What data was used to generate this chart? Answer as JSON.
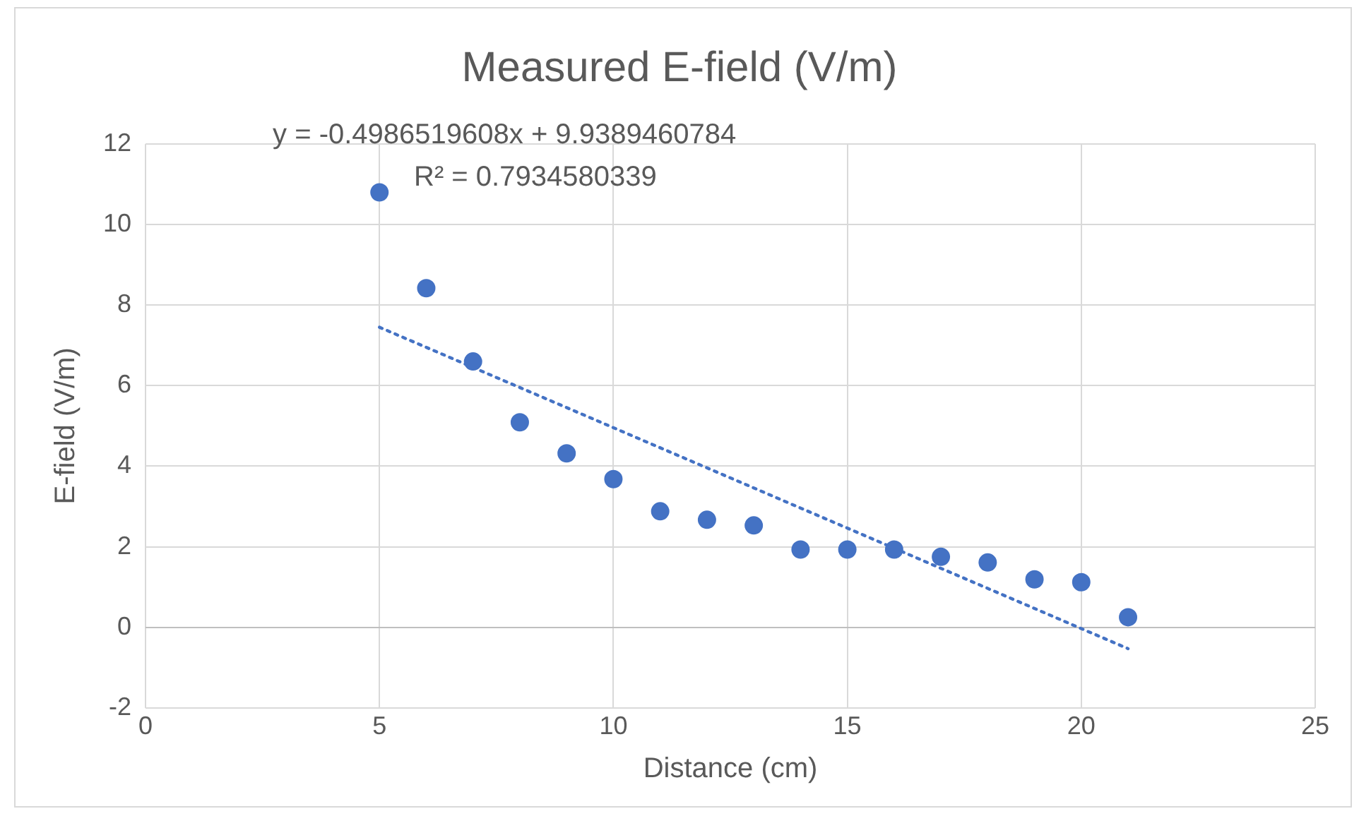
{
  "chart_data": {
    "type": "scatter",
    "title": "Measured E-field (V/m)",
    "xlabel": "Distance (cm)",
    "ylabel": "E-field (V/m)",
    "annotations": [
      "y = -0.4986519608x + 9.9389460784",
      "R² = 0.7934580339"
    ],
    "x": [
      5,
      6,
      7,
      8,
      9,
      10,
      11,
      12,
      13,
      14,
      15,
      16,
      17,
      18,
      19,
      20,
      21
    ],
    "series": [
      {
        "color": "#4472c4",
        "marker": "circle",
        "values": [
          10.8,
          8.42,
          6.6,
          5.09,
          4.32,
          3.68,
          2.88,
          2.67,
          2.53,
          1.93,
          1.93,
          1.93,
          1.75,
          1.61,
          1.19,
          1.12,
          0.25
        ]
      },
      {
        "type": "line",
        "color": "#4472c4",
        "line_style": "dotted",
        "marker": "none",
        "x": [
          5,
          21
        ],
        "values": [
          7.45,
          -0.53
        ]
      }
    ],
    "xlim": [
      0,
      25
    ],
    "xticks": [
      0,
      5,
      10,
      15,
      20,
      25
    ],
    "ylim": [
      -2,
      12
    ],
    "yticks": [
      -2,
      0,
      2,
      4,
      6,
      8,
      10,
      12
    ],
    "grid": true,
    "legend": false
  }
}
